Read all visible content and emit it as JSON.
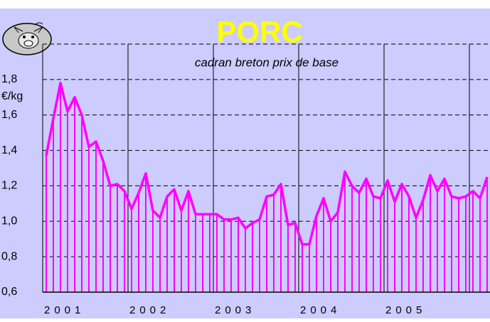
{
  "chart_data": {
    "type": "line-stem",
    "title": "PORC",
    "subtitle": "cadran breton prix de base",
    "y_label": "€/kg",
    "year_labels": [
      "2001",
      "2002",
      "2003",
      "2004",
      "2005"
    ],
    "values": [
      1.37,
      1.58,
      1.78,
      1.62,
      1.7,
      1.6,
      1.42,
      1.45,
      1.34,
      1.2,
      1.21,
      1.17,
      1.07,
      1.16,
      1.27,
      1.06,
      1.02,
      1.14,
      1.18,
      1.06,
      1.17,
      1.04,
      1.04,
      1.04,
      1.04,
      1.01,
      1.01,
      1.02,
      0.96,
      0.99,
      1.01,
      1.14,
      1.15,
      1.21,
      0.98,
      0.99,
      0.87,
      0.87,
      1.03,
      1.13,
      1.0,
      1.05,
      1.28,
      1.2,
      1.16,
      1.24,
      1.14,
      1.13,
      1.23,
      1.11,
      1.21,
      1.14,
      1.02,
      1.12,
      1.26,
      1.17,
      1.24,
      1.14,
      1.13,
      1.14,
      1.17,
      1.13,
      1.25
    ],
    "color": "#ff00ff",
    "ylim": [
      0.6,
      2.0
    ],
    "yticks": [
      {
        "value": 0.6,
        "label": "0,6"
      },
      {
        "value": 0.8,
        "label": "0,8"
      },
      {
        "value": 1.0,
        "label": "1,0"
      },
      {
        "value": 1.2,
        "label": "1,2"
      },
      {
        "value": 1.4,
        "label": "1,4"
      },
      {
        "value": 1.6,
        "label": "1,6"
      },
      {
        "value": 1.8,
        "label": "1,8"
      }
    ],
    "grid": true
  }
}
